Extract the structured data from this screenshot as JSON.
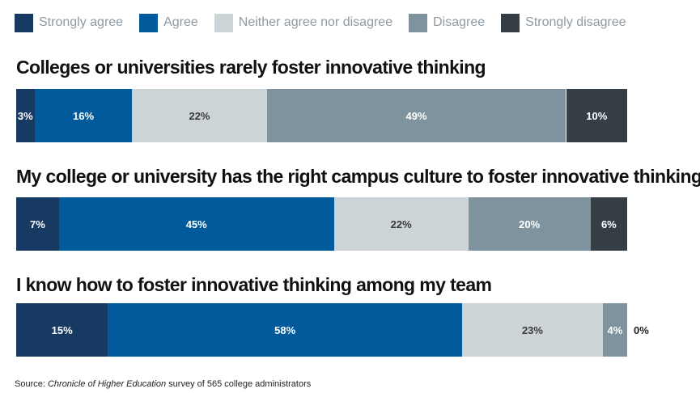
{
  "legend": [
    {
      "label": "Strongly agree",
      "color": "#173a63"
    },
    {
      "label": "Agree",
      "color": "#005a9c"
    },
    {
      "label": "Neither agree nor disagree",
      "color": "#ccd4d8"
    },
    {
      "label": "Disagree",
      "color": "#7f939f"
    },
    {
      "label": "Strongly disagree",
      "color": "#353e44"
    }
  ],
  "colors": {
    "strongly_agree": "#173a63",
    "agree": "#005a9c",
    "neither": "#ccd4d8",
    "disagree": "#7f939f",
    "strongly_disagree": "#353e44",
    "label_light": "#ffffff",
    "label_dark": "#3a3a3a"
  },
  "chart_data": {
    "type": "bar",
    "orientation": "horizontal",
    "stacked": true,
    "categories": [
      "Colleges or universities rarely foster innovative thinking",
      "My college or university has the right campus culture to foster innovative thinking",
      "I know how to foster innovative thinking among my team"
    ],
    "series": [
      {
        "name": "Strongly agree",
        "values": [
          3,
          7,
          15
        ],
        "labels": [
          "3%",
          "7%",
          "15%"
        ]
      },
      {
        "name": "Agree",
        "values": [
          16,
          45,
          58
        ],
        "labels": [
          "16%",
          "45%",
          "58%"
        ]
      },
      {
        "name": "Neither agree nor disagree",
        "values": [
          22,
          22,
          23
        ],
        "labels": [
          "22%",
          "22%",
          "23%"
        ]
      },
      {
        "name": "Disagree",
        "values": [
          49,
          20,
          4
        ],
        "labels": [
          "49%",
          "20%",
          "4%"
        ]
      },
      {
        "name": "Strongly disagree",
        "values": [
          10,
          6,
          0
        ],
        "labels": [
          "10%",
          "6%",
          "0%"
        ]
      }
    ],
    "xlim": [
      0,
      100
    ],
    "legend_position": "top"
  },
  "source": {
    "prefix": "Source: ",
    "publication": "Chronicle of Higher Education",
    "suffix": " survey of 565 college administrators"
  }
}
